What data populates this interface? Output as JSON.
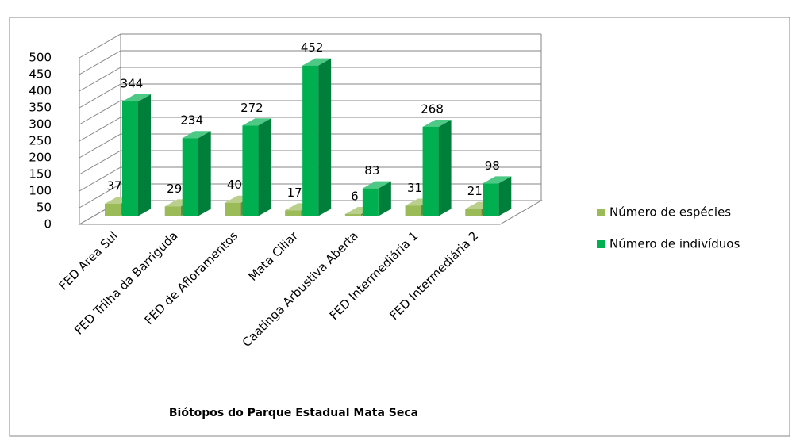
{
  "chart_data": {
    "type": "bar3d",
    "x_label": "Biótopos do Parque Estadual Mata Seca",
    "categories": [
      "FED Área Sul",
      "FED Trilha da Barriguda",
      "FED de Afloramentos",
      "Mata Ciliar",
      "Caatinga Arbustiva Aberta",
      "FED Intermediária 1",
      "FED Intermediária 2"
    ],
    "series": [
      {
        "name": "Número de espécies",
        "color": "#9bbb59",
        "values": [
          37,
          29,
          40,
          17,
          6,
          31,
          21
        ]
      },
      {
        "name": "Número de indivíduos",
        "color": "#00b050",
        "values": [
          344,
          234,
          272,
          452,
          83,
          268,
          98
        ]
      }
    ],
    "ylim": [
      0,
      500
    ],
    "yticks": [
      0,
      50,
      100,
      150,
      200,
      250,
      300,
      350,
      400,
      450,
      500
    ],
    "grid": true,
    "legend": "right"
  }
}
